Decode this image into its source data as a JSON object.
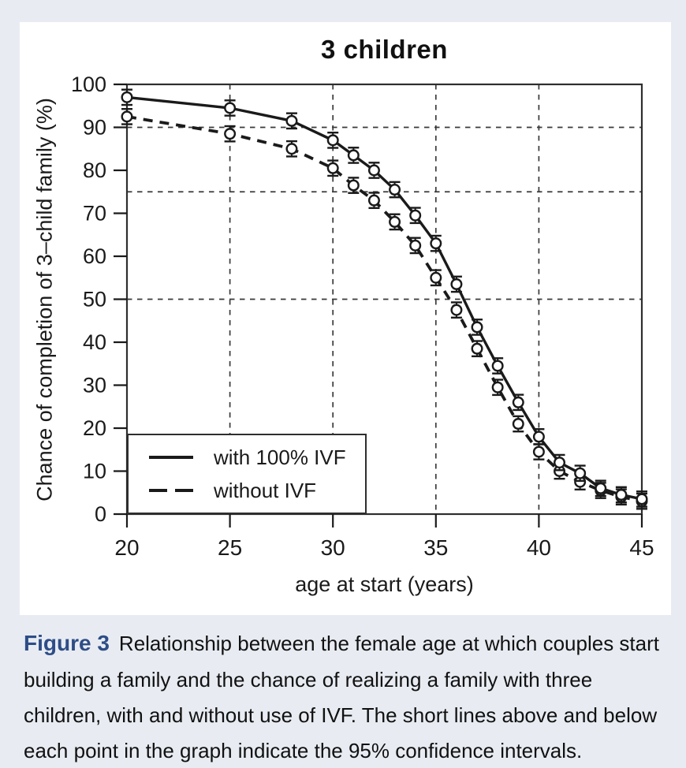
{
  "page": {
    "background_color": "#e8ecf2",
    "panel_color": "#ffffff",
    "ink_color": "#1a1a1a",
    "caption_accent_color": "#2e4d87"
  },
  "figure": {
    "caption_label": "Figure 3",
    "caption_text": "Relationship between the female age at which couples start building a family and the chance of realizing a family with three children, with and without use of IVF. The short lines above and below each point in the graph indicate the 95% confidence intervals."
  },
  "legend": {
    "item1": "with 100% IVF",
    "item2": "without IVF"
  },
  "chart_data": {
    "type": "line",
    "title": "3 children",
    "xlabel": "age at start (years)",
    "ylabel": "Chance of completion of 3–child family (%)",
    "xlim": [
      20,
      45
    ],
    "ylim": [
      0,
      100
    ],
    "x_ticks": [
      20,
      25,
      30,
      35,
      40,
      45
    ],
    "y_ticks": [
      0,
      10,
      20,
      30,
      40,
      50,
      60,
      70,
      80,
      90,
      100
    ],
    "x_gridlines": [
      25,
      30,
      35,
      40
    ],
    "y_gridlines": [
      50,
      75,
      90
    ],
    "grid_style": "dashed",
    "legend_position": "lower-left",
    "marker": "open-circle",
    "error_bar_ci": "95%",
    "error_bar_halfwidth": 1.5,
    "x": [
      20,
      25,
      28,
      30,
      31,
      32,
      33,
      34,
      35,
      36,
      37,
      38,
      39,
      40,
      41,
      42,
      43,
      44,
      45
    ],
    "series": [
      {
        "name": "without IVF",
        "line_style": "dashed",
        "values": [
          92.5,
          88.5,
          85,
          80.5,
          76.5,
          73,
          68,
          62.5,
          55,
          47.5,
          38.5,
          29.5,
          21,
          14.5,
          10,
          7.5,
          5.5,
          4,
          3
        ]
      },
      {
        "name": "with 100% IVF",
        "line_style": "solid",
        "values": [
          97,
          94.5,
          91.5,
          87,
          83.5,
          80,
          75.5,
          69.5,
          63,
          53.5,
          43.5,
          34.5,
          26,
          18,
          12,
          9.5,
          6,
          4.5,
          3.5
        ]
      }
    ]
  }
}
